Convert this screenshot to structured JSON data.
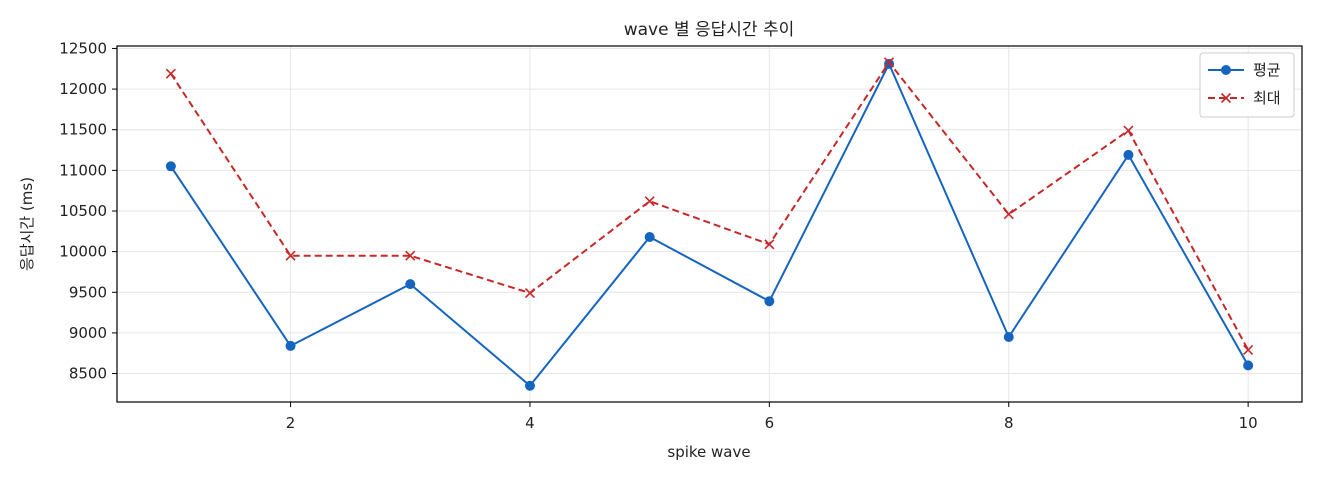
{
  "chart_data": {
    "type": "line",
    "title": "wave 별 응답시간 추이",
    "xlabel": "spike wave",
    "ylabel": "응답시간 (ms)",
    "x": [
      1,
      2,
      3,
      4,
      5,
      6,
      7,
      8,
      9,
      10
    ],
    "xlim": [
      0.55,
      10.45
    ],
    "ylim": [
      8150,
      12530
    ],
    "xticks": [
      2,
      4,
      6,
      8,
      10
    ],
    "yticks": [
      8500,
      9000,
      9500,
      10000,
      10500,
      11000,
      11500,
      12000,
      12500
    ],
    "grid": true,
    "legend_position": "top-right",
    "series": [
      {
        "name": "평균",
        "values": [
          11050,
          8840,
          9600,
          8350,
          10180,
          9390,
          12310,
          8950,
          11190,
          8600
        ],
        "color": "#1565c0",
        "line_style": "solid",
        "marker": "circle"
      },
      {
        "name": "최대",
        "values": [
          12190,
          9950,
          9950,
          9490,
          10620,
          10090,
          12330,
          10460,
          11490,
          8790
        ],
        "color": "#c62828",
        "line_style": "dashed",
        "marker": "x"
      }
    ]
  }
}
